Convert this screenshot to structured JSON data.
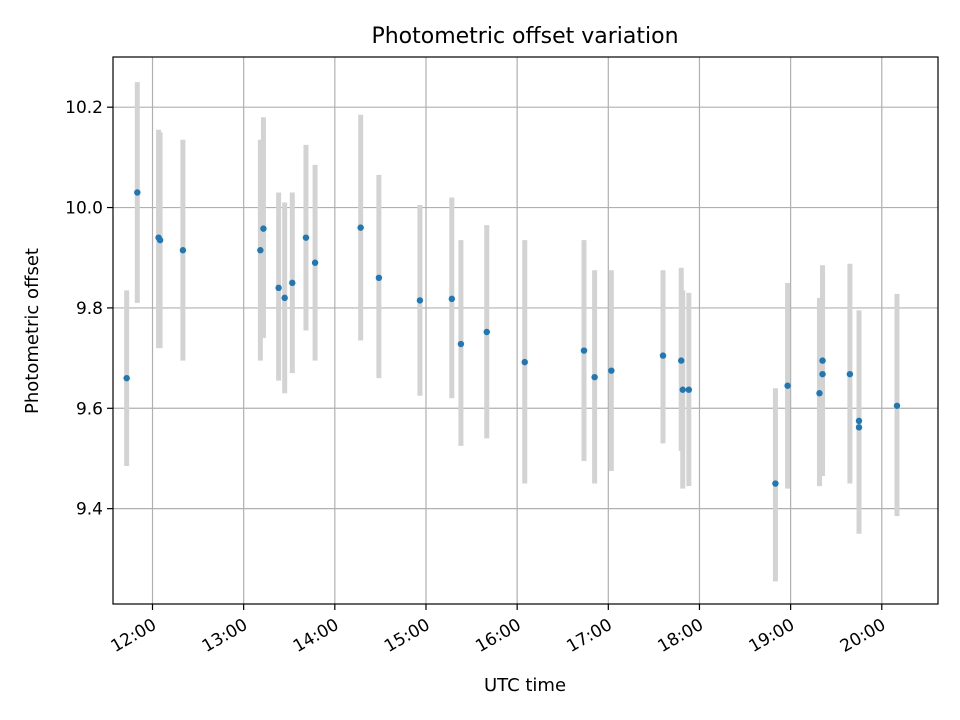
{
  "chart_data": {
    "type": "scatter",
    "title": "Photometric offset variation",
    "xlabel": "UTC time",
    "ylabel": "Photometric offset",
    "xlim": [
      "11:34",
      "20:37"
    ],
    "ylim": [
      9.21,
      10.3
    ],
    "grid": true,
    "x_ticks": [
      "12:00",
      "13:00",
      "14:00",
      "15:00",
      "16:00",
      "17:00",
      "18:00",
      "19:00",
      "20:00"
    ],
    "y_ticks": [
      9.4,
      9.6,
      9.8,
      10.0,
      10.2
    ],
    "point_color": "#1f77b4",
    "errorbar_color": "#d3d3d3",
    "points": [
      {
        "t": "11:43",
        "y": 9.66,
        "lo": 9.485,
        "hi": 9.835
      },
      {
        "t": "11:50",
        "y": 10.03,
        "lo": 9.81,
        "hi": 10.25
      },
      {
        "t": "12:04",
        "y": 9.94,
        "lo": 9.72,
        "hi": 10.155
      },
      {
        "t": "12:05",
        "y": 9.935,
        "lo": 9.72,
        "hi": 10.15
      },
      {
        "t": "12:20",
        "y": 9.915,
        "lo": 9.695,
        "hi": 10.135
      },
      {
        "t": "13:11",
        "y": 9.915,
        "lo": 9.695,
        "hi": 10.135
      },
      {
        "t": "13:13",
        "y": 9.958,
        "lo": 9.74,
        "hi": 10.18
      },
      {
        "t": "13:23",
        "y": 9.84,
        "lo": 9.655,
        "hi": 10.03
      },
      {
        "t": "13:27",
        "y": 9.82,
        "lo": 9.63,
        "hi": 10.01
      },
      {
        "t": "13:32",
        "y": 9.85,
        "lo": 9.67,
        "hi": 10.03
      },
      {
        "t": "13:41",
        "y": 9.94,
        "lo": 9.755,
        "hi": 10.125
      },
      {
        "t": "13:47",
        "y": 9.89,
        "lo": 9.695,
        "hi": 10.085
      },
      {
        "t": "14:17",
        "y": 9.96,
        "lo": 9.735,
        "hi": 10.185
      },
      {
        "t": "14:29",
        "y": 9.86,
        "lo": 9.66,
        "hi": 10.065
      },
      {
        "t": "14:56",
        "y": 9.815,
        "lo": 9.625,
        "hi": 10.005
      },
      {
        "t": "15:17",
        "y": 9.818,
        "lo": 9.62,
        "hi": 10.02
      },
      {
        "t": "15:23",
        "y": 9.728,
        "lo": 9.525,
        "hi": 9.935
      },
      {
        "t": "15:40",
        "y": 9.752,
        "lo": 9.54,
        "hi": 9.965
      },
      {
        "t": "16:05",
        "y": 9.692,
        "lo": 9.45,
        "hi": 9.935
      },
      {
        "t": "16:44",
        "y": 9.715,
        "lo": 9.495,
        "hi": 9.935
      },
      {
        "t": "16:51",
        "y": 9.662,
        "lo": 9.45,
        "hi": 9.875
      },
      {
        "t": "17:02",
        "y": 9.675,
        "lo": 9.475,
        "hi": 9.875
      },
      {
        "t": "17:36",
        "y": 9.705,
        "lo": 9.53,
        "hi": 9.875
      },
      {
        "t": "17:48",
        "y": 9.695,
        "lo": 9.515,
        "hi": 9.88
      },
      {
        "t": "17:49",
        "y": 9.637,
        "lo": 9.44,
        "hi": 9.835
      },
      {
        "t": "17:53",
        "y": 9.637,
        "lo": 9.445,
        "hi": 9.83
      },
      {
        "t": "18:50",
        "y": 9.45,
        "lo": 9.255,
        "hi": 9.64
      },
      {
        "t": "18:58",
        "y": 9.645,
        "lo": 9.44,
        "hi": 9.85
      },
      {
        "t": "19:19",
        "y": 9.63,
        "lo": 9.445,
        "hi": 9.82
      },
      {
        "t": "19:21",
        "y": 9.695,
        "lo": 9.51,
        "hi": 9.885
      },
      {
        "t": "19:21",
        "y": 9.668,
        "lo": 9.465,
        "hi": 9.875
      },
      {
        "t": "19:39",
        "y": 9.668,
        "lo": 9.45,
        "hi": 9.888
      },
      {
        "t": "19:45",
        "y": 9.575,
        "lo": 9.355,
        "hi": 9.795
      },
      {
        "t": "19:45",
        "y": 9.562,
        "lo": 9.35,
        "hi": 9.78
      },
      {
        "t": "20:10",
        "y": 9.605,
        "lo": 9.385,
        "hi": 9.828
      }
    ]
  }
}
